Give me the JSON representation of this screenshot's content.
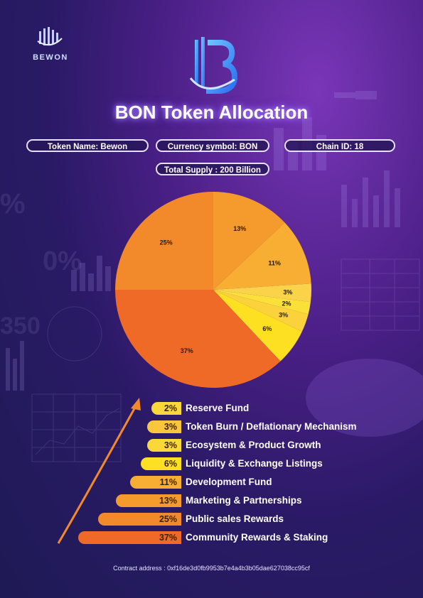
{
  "brand": {
    "logo_text": "BEWON"
  },
  "title": "BON Token Allocation",
  "info": {
    "token_name": "Token Name: Bewon",
    "currency_symbol": "Currency symbol: BON",
    "chain_id": "Chain ID: 18",
    "total_supply": "Total Supply :  200 Billion"
  },
  "chart_data": {
    "type": "pie",
    "values": [
      13,
      11,
      3,
      2,
      3,
      6,
      37,
      25
    ],
    "labels": [
      "13%",
      "11%",
      "3%",
      "2%",
      "3%",
      "6%",
      "37%",
      "25%"
    ],
    "colors": [
      "#f59a2c",
      "#f7ae32",
      "#fbd34a",
      "#fbe03a",
      "#fbd23c",
      "#fde022",
      "#ef6a26",
      "#f28a2c"
    ]
  },
  "legend": [
    {
      "percent": "2%",
      "label": "Reserve Fund",
      "color": "#fbd83a"
    },
    {
      "percent": "3%",
      "label": "Token Burn / Deflationary Mechanism",
      "color": "#f9c63e"
    },
    {
      "percent": "3%",
      "label": "Ecosystem & Product Growth",
      "color": "#fbd83a"
    },
    {
      "percent": "6%",
      "label": "Liquidity & Exchange Listings",
      "color": "#fde022"
    },
    {
      "percent": "11%",
      "label": "Development Fund",
      "color": "#f7ae32"
    },
    {
      "percent": "13%",
      "label": "Marketing & Partnerships",
      "color": "#f59a2c"
    },
    {
      "percent": "25%",
      "label": "Public sales Rewards",
      "color": "#f28a2c"
    },
    {
      "percent": "37%",
      "label": "Community Rewards & Staking",
      "color": "#ef6a26"
    }
  ],
  "contract": "Contract address  : 0xf16de3d0fb9953b7e4a4b3b05dae627038cc95cf"
}
